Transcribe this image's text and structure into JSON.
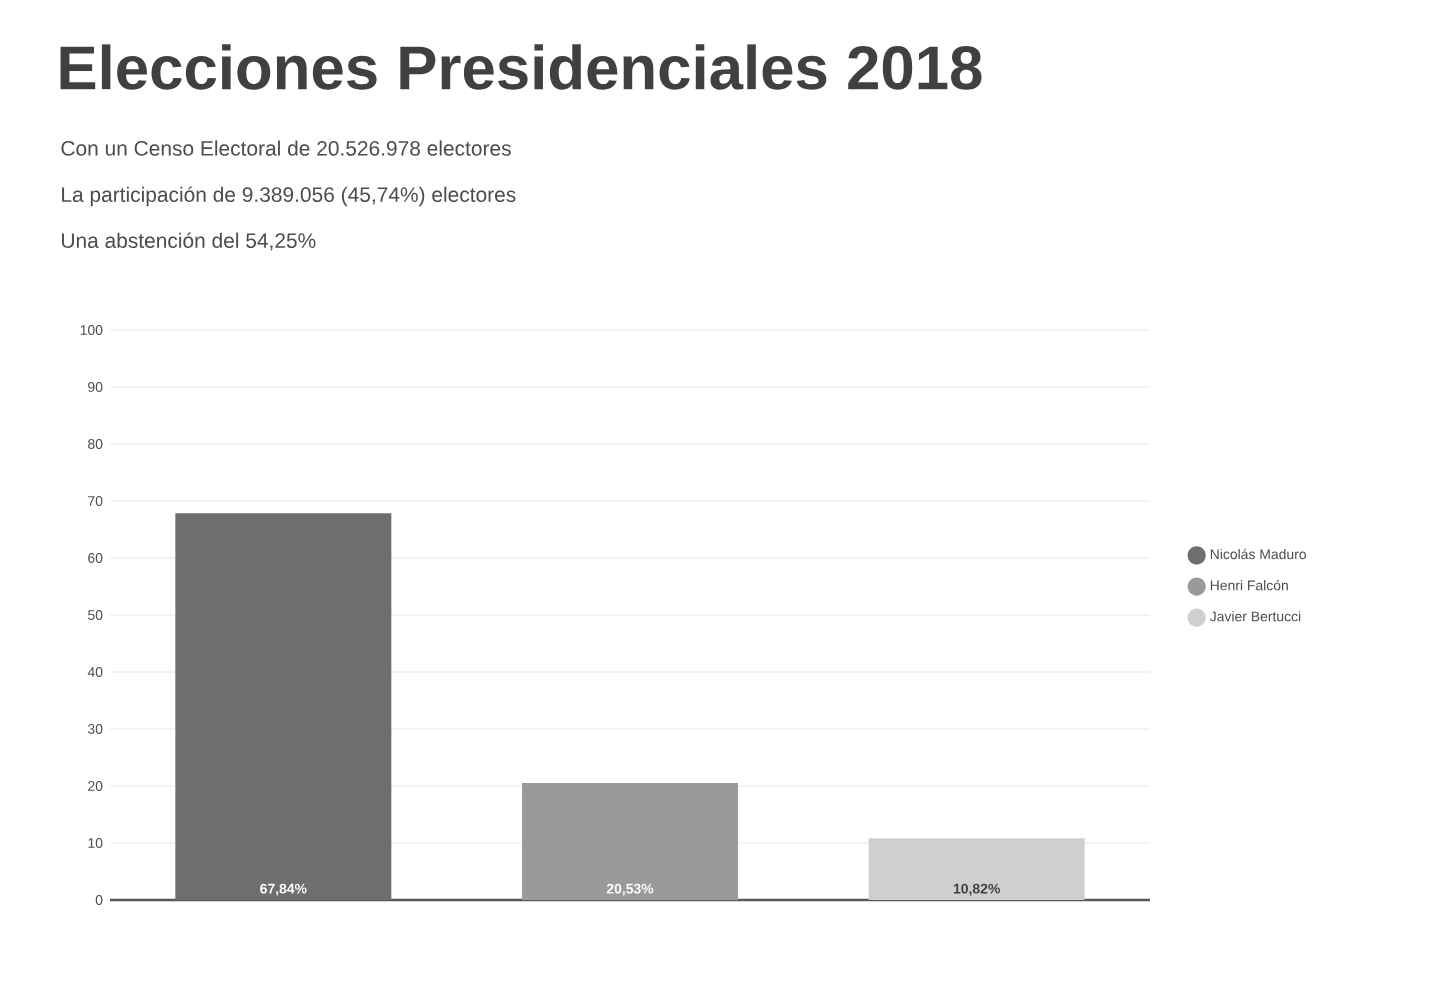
{
  "chart_data": {
    "type": "bar",
    "title": "Elecciones Presidenciales 2018",
    "subtitle": "Con un Censo Electoral de 20.526.978 electores",
    "annotations": [
      "La participación de 9.389.056 (45,74%) electores",
      "Una abstención del 54,25%"
    ],
    "categories": [
      null,
      null,
      null
    ],
    "series": [
      {
        "name": "Nicolás Maduro",
        "color": "#6e6e6e",
        "values": [
          67.84,
          null,
          null
        ],
        "value_labels": [
          "67,84%",
          null,
          null
        ]
      },
      {
        "name": "Henri Falcón",
        "color": "#9a9a9a",
        "values": [
          null,
          20.53,
          null
        ],
        "value_labels": [
          null,
          "20,53%",
          null
        ]
      },
      {
        "name": "Javier Bertucci",
        "color": "#cfcfcf",
        "values": [
          null,
          null,
          10.82
        ],
        "value_labels": [
          null,
          null,
          "10,82%"
        ]
      }
    ],
    "ylim": [
      0,
      100
    ],
    "yticks": [
      0,
      10,
      20,
      30,
      40,
      50,
      60,
      70,
      80,
      90,
      100
    ],
    "grid": "y",
    "legend": "right"
  }
}
